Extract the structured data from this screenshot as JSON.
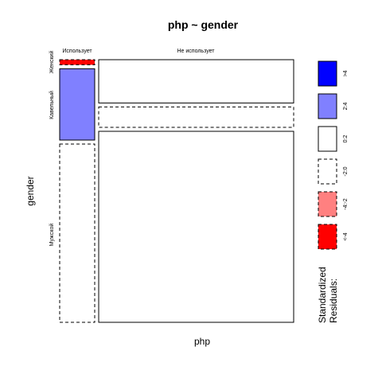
{
  "chart_data": {
    "type": "mosaic",
    "title": "php ~ gender",
    "xlabel": "php",
    "ylabel": "gender",
    "columns": [
      "Использует",
      "Не использует"
    ],
    "rows": [
      "Женский",
      "Кавельный",
      "Мужской"
    ],
    "column_shares": [
      0.1,
      0.9
    ],
    "cells": [
      {
        "column": "Использует",
        "row": "Женский",
        "share_in_column": 0.02,
        "residual_class": "<-4",
        "border": "dashed"
      },
      {
        "column": "Использует",
        "row": "Кавельный",
        "share_in_column": 0.28,
        "residual_class": "2:4",
        "border": "solid"
      },
      {
        "column": "Использует",
        "row": "Мужской",
        "share_in_column": 0.7,
        "residual_class": "-2:0",
        "border": "dashed"
      },
      {
        "column": "Не использует",
        "row": "Женский",
        "share_in_column": 0.17,
        "residual_class": "0:2",
        "border": "solid"
      },
      {
        "column": "Не использует",
        "row": "Кавельный",
        "share_in_column": 0.08,
        "residual_class": "-2:0",
        "border": "dashed"
      },
      {
        "column": "Не использует",
        "row": "Мужской",
        "share_in_column": 0.75,
        "residual_class": "0:2",
        "border": "solid"
      }
    ],
    "legend": {
      "title_lines": [
        "Standardized",
        "Residuals:"
      ],
      "placement": "right",
      "entries": [
        {
          "label": ">4",
          "fill": "#0000ff",
          "border": "solid"
        },
        {
          "label": "2:4",
          "fill": "#8080ff",
          "border": "solid"
        },
        {
          "label": "0:2",
          "fill": "#ffffff",
          "border": "solid"
        },
        {
          "label": "-2:0",
          "fill": "#ffffff",
          "border": "dashed"
        },
        {
          "label": "-4:-2",
          "fill": "#ff8080",
          "border": "dashed"
        },
        {
          "label": "<-4",
          "fill": "#ff0000",
          "border": "dashed"
        }
      ]
    }
  }
}
